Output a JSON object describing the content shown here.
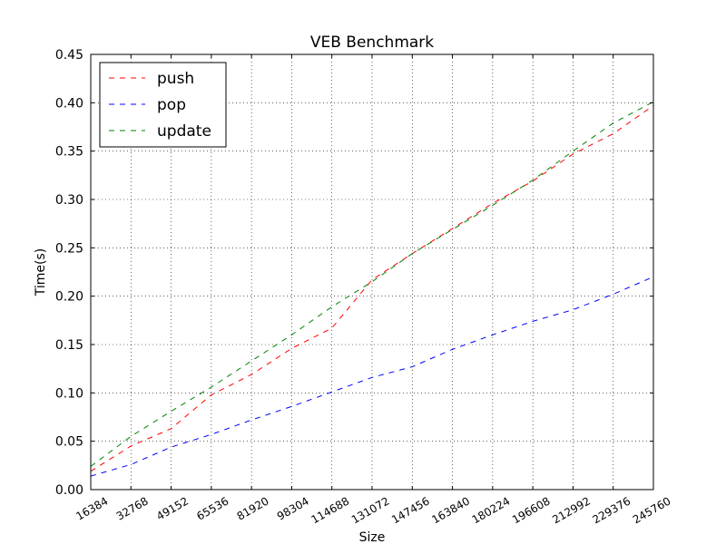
{
  "chart_data": {
    "type": "line",
    "title": "VEB Benchmark",
    "xlabel": "Size",
    "ylabel": "Time(s)",
    "xlim": [
      16384,
      245760
    ],
    "ylim": [
      0,
      0.45
    ],
    "grid": true,
    "legend_position": "top-left",
    "x_ticks": [
      16384,
      32768,
      49152,
      65536,
      81920,
      98304,
      114688,
      131072,
      147456,
      163840,
      180224,
      196608,
      212992,
      229376,
      245760
    ],
    "y_ticks": [
      "0.00",
      "0.05",
      "0.10",
      "0.15",
      "0.20",
      "0.25",
      "0.30",
      "0.35",
      "0.40",
      "0.45"
    ],
    "x": [
      16384,
      32768,
      49152,
      65536,
      81920,
      98304,
      114688,
      131072,
      147456,
      163840,
      180224,
      196608,
      212992,
      229376,
      245760
    ],
    "series": [
      {
        "name": "push",
        "color": "#ff0000",
        "style": "dashed",
        "values": [
          0.019,
          0.045,
          0.063,
          0.098,
          0.119,
          0.146,
          0.167,
          0.217,
          0.244,
          0.27,
          0.296,
          0.319,
          0.347,
          0.368,
          0.397
        ]
      },
      {
        "name": "pop",
        "color": "#0000ff",
        "style": "dashed",
        "values": [
          0.014,
          0.026,
          0.044,
          0.057,
          0.072,
          0.086,
          0.101,
          0.116,
          0.127,
          0.145,
          0.16,
          0.174,
          0.186,
          0.202,
          0.22
        ]
      },
      {
        "name": "update",
        "color": "#008000",
        "style": "dashed",
        "values": [
          0.024,
          0.055,
          0.081,
          0.106,
          0.133,
          0.16,
          0.189,
          0.215,
          0.244,
          0.269,
          0.294,
          0.32,
          0.35,
          0.379,
          0.401
        ]
      }
    ]
  }
}
